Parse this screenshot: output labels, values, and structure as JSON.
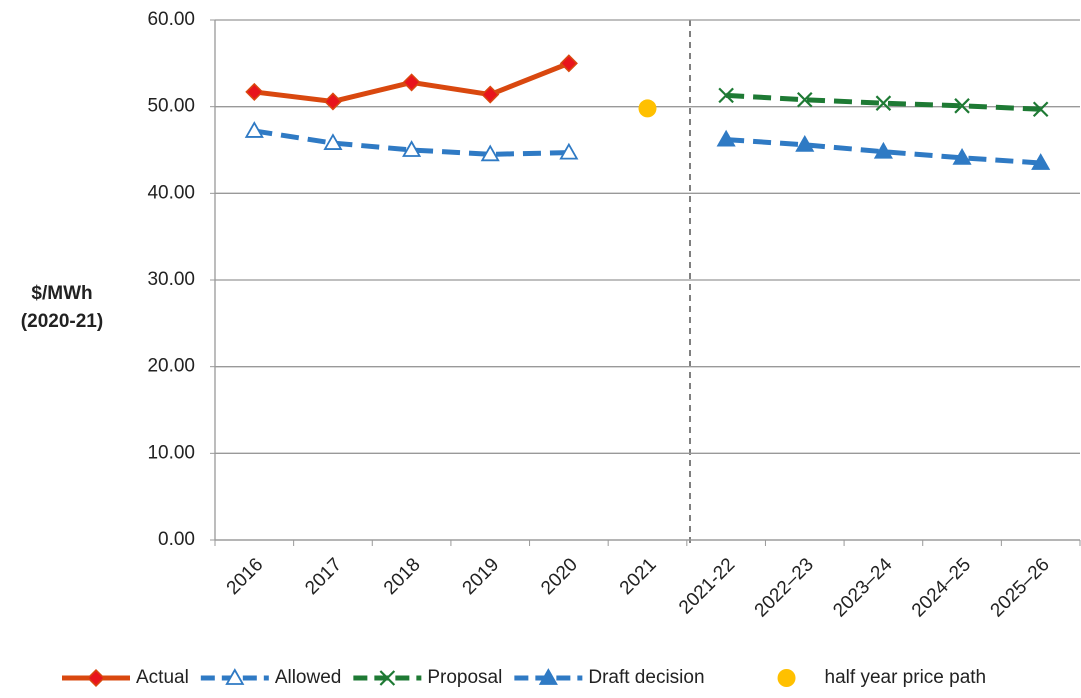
{
  "chart_data": {
    "type": "line",
    "y_label": [
      "$/MWh",
      "(2020-21)"
    ],
    "categories": [
      "2016",
      "2017",
      "2018",
      "2019",
      "2020",
      "2021",
      "2021-22",
      "2022–23",
      "2023–24",
      "2024–25",
      "2025–26"
    ],
    "ylim": [
      0,
      60
    ],
    "yticks": [
      {
        "value": 0,
        "label": "0.00"
      },
      {
        "value": 10,
        "label": "10.00"
      },
      {
        "value": 20,
        "label": "20.00"
      },
      {
        "value": 30,
        "label": "30.00"
      },
      {
        "value": 40,
        "label": "40.00"
      },
      {
        "value": 50,
        "label": "50.00"
      },
      {
        "value": 60,
        "label": "60.00"
      }
    ],
    "grid": true,
    "legend": "bottom",
    "series": [
      {
        "name": "Actual",
        "color": "#d9480f",
        "marker": "diamond",
        "line": "solid",
        "values": [
          51.7,
          50.6,
          52.8,
          51.4,
          55.0,
          null,
          null,
          null,
          null,
          null,
          null
        ]
      },
      {
        "name": "Allowed",
        "color": "#2f7ac4",
        "marker": "triangle-open",
        "line": "dashed",
        "values": [
          47.2,
          45.8,
          45.0,
          44.5,
          44.7,
          null,
          null,
          null,
          null,
          null,
          null
        ]
      },
      {
        "name": "Proposal",
        "color": "#1e7a34",
        "marker": "x",
        "line": "dashed",
        "values": [
          null,
          null,
          null,
          null,
          null,
          null,
          51.3,
          50.8,
          50.4,
          50.1,
          49.7
        ]
      },
      {
        "name": "Draft decision",
        "color": "#2f7ac4",
        "marker": "triangle",
        "line": "dashed",
        "values": [
          null,
          null,
          null,
          null,
          null,
          null,
          46.2,
          45.6,
          44.8,
          44.1,
          43.5
        ]
      },
      {
        "name": "half year price path",
        "color": "#ffc000",
        "marker": "circle",
        "line": "none",
        "values": [
          null,
          null,
          null,
          null,
          null,
          49.8,
          null,
          null,
          null,
          null,
          null
        ]
      }
    ]
  }
}
